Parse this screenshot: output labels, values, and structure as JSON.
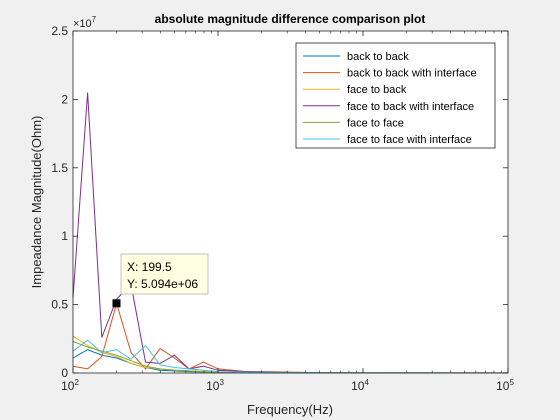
{
  "chart_data": {
    "type": "line",
    "title": "absolute magnitude difference comparison plot",
    "xlabel": "Frequency(Hz)",
    "ylabel": "Impeadance Magnitude(Ohm)",
    "x_scale": "log",
    "xlim": [
      100,
      100000
    ],
    "ylim": [
      0,
      25000000
    ],
    "y_exponent_label": "×10",
    "y_exponent_power": "7",
    "x_ticks": [
      {
        "value": 100,
        "base": "10",
        "power": "2"
      },
      {
        "value": 1000,
        "base": "10",
        "power": "3"
      },
      {
        "value": 10000,
        "base": "10",
        "power": "4"
      },
      {
        "value": 100000,
        "base": "10",
        "power": "5"
      }
    ],
    "y_ticks": [
      {
        "value": 0,
        "label": "0"
      },
      {
        "value": 5000000,
        "label": "0.5"
      },
      {
        "value": 10000000,
        "label": "1"
      },
      {
        "value": 15000000,
        "label": "1.5"
      },
      {
        "value": 20000000,
        "label": "2"
      },
      {
        "value": 25000000,
        "label": "2.5"
      }
    ],
    "legend_position": "top-right",
    "series": [
      {
        "name": "back to back",
        "color": "#0072BD",
        "x": [
          100,
          126,
          158,
          200,
          251,
          316,
          398,
          501,
          631,
          794,
          1000,
          1585,
          2512,
          5012,
          10000,
          100000
        ],
        "y": [
          1100000,
          1700000,
          1300000,
          1100000,
          700000,
          400000,
          200000,
          150000,
          100000,
          80000,
          50000,
          30000,
          20000,
          10000,
          5000,
          2000
        ]
      },
      {
        "name": "back to back with interface",
        "color": "#D95319",
        "x": [
          100,
          126,
          158,
          200,
          251,
          316,
          398,
          501,
          631,
          794,
          1000,
          1585,
          2512,
          5012,
          10000,
          100000
        ],
        "y": [
          500000,
          300000,
          1200000,
          5094000,
          1500000,
          300000,
          1800000,
          1100000,
          300000,
          800000,
          300000,
          100000,
          80000,
          30000,
          10000,
          5000
        ]
      },
      {
        "name": "face to back",
        "color": "#EDB120",
        "x": [
          100,
          126,
          158,
          200,
          251,
          316,
          398,
          501,
          631,
          794,
          1000,
          1585,
          2512,
          5012,
          10000,
          100000
        ],
        "y": [
          2700000,
          2000000,
          1500000,
          1200000,
          700000,
          400000,
          300000,
          200000,
          150000,
          100000,
          60000,
          40000,
          20000,
          10000,
          5000,
          2000
        ]
      },
      {
        "name": "face to back with interface",
        "color": "#7E2F8E",
        "x": [
          100,
          126,
          158,
          200,
          251,
          316,
          398,
          501,
          631,
          794,
          1000,
          1585,
          2512,
          5012,
          10000,
          100000
        ],
        "y": [
          5500000,
          20500000,
          2600000,
          5400000,
          6500000,
          800000,
          700000,
          1300000,
          300000,
          500000,
          200000,
          100000,
          50000,
          20000,
          10000,
          5000
        ]
      },
      {
        "name": "face to face",
        "color": "#77AC30",
        "x": [
          100,
          126,
          158,
          200,
          251,
          316,
          398,
          501,
          631,
          794,
          1000,
          1585,
          2512,
          5012,
          10000,
          100000
        ],
        "y": [
          2300000,
          1900000,
          1600000,
          1300000,
          900000,
          500000,
          300000,
          200000,
          150000,
          100000,
          60000,
          40000,
          20000,
          10000,
          5000,
          2000
        ]
      },
      {
        "name": "face to face with interface",
        "color": "#4DBEEE",
        "x": [
          100,
          126,
          158,
          200,
          251,
          316,
          398,
          501,
          631,
          794,
          1000,
          1585,
          2512,
          5012,
          10000,
          100000
        ],
        "y": [
          1600000,
          2400000,
          1500000,
          1700000,
          1000000,
          2000000,
          600000,
          400000,
          300000,
          200000,
          100000,
          60000,
          30000,
          15000,
          7000,
          3000
        ]
      }
    ],
    "datatip": {
      "x": 199.5,
      "y": 5094000,
      "line1": "X: 199.5",
      "line2": "Y: 5.094e+06"
    }
  }
}
